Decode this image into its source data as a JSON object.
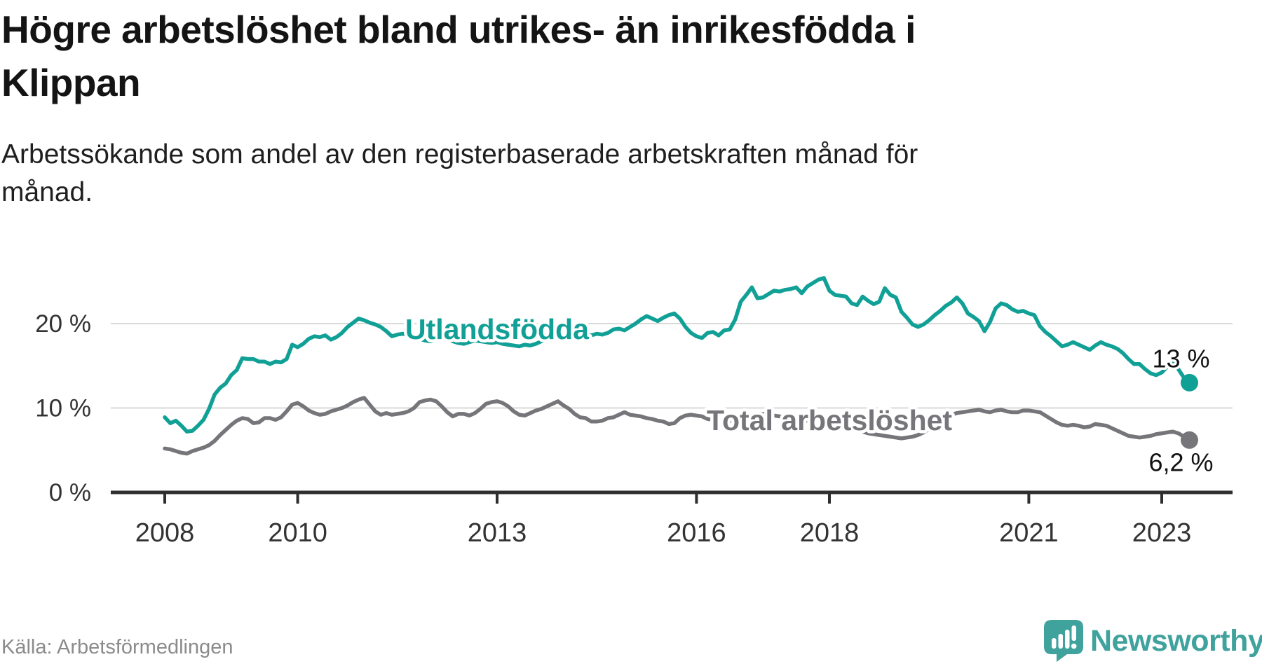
{
  "header": {
    "title_lines": [
      "Högre arbetslöshet bland utrikes- än inrikesfödda i",
      "Klippan"
    ],
    "subtitle_lines": [
      "Arbetssökande som andel av den registerbaserade arbetskraften månad för",
      "månad."
    ]
  },
  "footer": {
    "source": "Källa: Arbetsförmedlingen",
    "brand": "Newsworthy"
  },
  "chart_data": {
    "type": "line",
    "title": "Högre arbetslöshet bland utrikes- än inrikesfödda i Klippan",
    "subtitle": "Arbetssökande som andel av den registerbaserade arbetskraften månad för månad.",
    "source": "Källa: Arbetsförmedlingen",
    "unit": "%",
    "grid": true,
    "legend": "inline-labels",
    "x_axis": {
      "start_year": 2008,
      "start_month": 1,
      "end_year": 2023,
      "end_month": 6,
      "tick_years": [
        2008,
        2010,
        2013,
        2016,
        2018,
        2021,
        2023
      ]
    },
    "y_axis": {
      "range": [
        0,
        27
      ],
      "ticks": [
        {
          "value": 0,
          "label": "0 %"
        },
        {
          "value": 10,
          "label": "10 %"
        },
        {
          "value": 20,
          "label": "20 %"
        }
      ]
    },
    "series": [
      {
        "name": "Utlandsfödda",
        "color": "#11a096",
        "end_label": "13 %",
        "end_value": 13.0,
        "values": [
          8.9,
          8.2,
          8.5,
          7.9,
          7.2,
          7.3,
          7.9,
          8.6,
          9.9,
          11.6,
          12.4,
          12.9,
          13.9,
          14.5,
          15.9,
          15.8,
          15.8,
          15.5,
          15.5,
          15.2,
          15.5,
          15.4,
          15.8,
          17.5,
          17.2,
          17.6,
          18.2,
          18.5,
          18.4,
          18.6,
          18.1,
          18.4,
          18.9,
          19.6,
          20.1,
          20.6,
          20.4,
          20.1,
          19.9,
          19.6,
          19.1,
          18.5,
          18.7,
          18.8,
          18.6,
          18.4,
          18.2,
          18.0,
          17.9,
          18.1,
          18.3,
          18.1,
          17.9,
          17.7,
          17.6,
          17.8,
          18.0,
          17.9,
          17.8,
          17.7,
          17.8,
          17.6,
          17.5,
          17.4,
          17.3,
          17.5,
          17.4,
          17.6,
          17.9,
          18.1,
          18.3,
          18.5,
          18.6,
          18.8,
          19.0,
          18.7,
          18.9,
          18.6,
          18.8,
          18.7,
          18.9,
          19.3,
          19.4,
          19.2,
          19.6,
          20.0,
          20.5,
          20.9,
          20.6,
          20.3,
          20.7,
          21.0,
          21.2,
          20.6,
          19.6,
          18.9,
          18.5,
          18.3,
          18.9,
          19.0,
          18.6,
          19.2,
          19.3,
          20.5,
          22.6,
          23.4,
          24.3,
          23.0,
          23.1,
          23.5,
          23.9,
          23.8,
          24.0,
          24.1,
          24.3,
          23.6,
          24.4,
          24.8,
          25.2,
          25.4,
          23.9,
          23.4,
          23.3,
          23.2,
          22.4,
          22.2,
          23.2,
          22.7,
          22.3,
          22.6,
          24.2,
          23.4,
          23.1,
          21.4,
          20.7,
          19.9,
          19.6,
          19.9,
          20.4,
          21.0,
          21.5,
          22.1,
          22.5,
          23.1,
          22.4,
          21.2,
          20.8,
          20.3,
          19.1,
          20.2,
          21.8,
          22.4,
          22.2,
          21.7,
          21.4,
          21.5,
          21.2,
          21.0,
          19.7,
          19.0,
          18.5,
          17.9,
          17.3,
          17.5,
          17.8,
          17.5,
          17.2,
          16.9,
          17.4,
          17.8,
          17.5,
          17.3,
          17.0,
          16.5,
          15.8,
          15.2,
          15.2,
          14.6,
          14.1,
          13.9,
          14.2,
          14.9,
          15.4,
          14.6,
          13.6,
          13.0
        ]
      },
      {
        "name": "Total arbetslöshet",
        "color": "#76767a",
        "end_label": "6,2 %",
        "end_value": 6.2,
        "values": [
          5.2,
          5.1,
          4.9,
          4.7,
          4.6,
          4.9,
          5.1,
          5.3,
          5.6,
          6.1,
          6.8,
          7.4,
          8.0,
          8.5,
          8.8,
          8.7,
          8.2,
          8.3,
          8.8,
          8.8,
          8.6,
          8.9,
          9.6,
          10.4,
          10.6,
          10.2,
          9.7,
          9.4,
          9.2,
          9.3,
          9.6,
          9.8,
          10.0,
          10.3,
          10.7,
          11.0,
          11.2,
          10.4,
          9.6,
          9.2,
          9.4,
          9.2,
          9.3,
          9.4,
          9.6,
          10.0,
          10.7,
          10.9,
          11.0,
          10.8,
          10.2,
          9.5,
          9.0,
          9.3,
          9.3,
          9.1,
          9.4,
          9.9,
          10.5,
          10.7,
          10.8,
          10.6,
          10.2,
          9.6,
          9.2,
          9.1,
          9.4,
          9.7,
          9.9,
          10.2,
          10.5,
          10.8,
          10.3,
          9.9,
          9.3,
          8.9,
          8.8,
          8.4,
          8.4,
          8.5,
          8.8,
          8.9,
          9.2,
          9.5,
          9.2,
          9.1,
          9.0,
          8.8,
          8.7,
          8.5,
          8.4,
          8.1,
          8.2,
          8.8,
          9.1,
          9.2,
          9.1,
          9.0,
          8.7,
          8.6,
          8.5,
          8.4,
          8.4,
          8.6,
          8.8,
          9.0,
          9.1,
          9.2,
          9.3,
          9.2,
          9.1,
          9.0,
          8.9,
          8.8,
          8.7,
          8.6,
          8.5,
          8.4,
          8.3,
          8.2,
          8.1,
          8.0,
          7.9,
          7.8,
          7.6,
          7.4,
          7.2,
          7.0,
          6.9,
          6.8,
          6.7,
          6.6,
          6.5,
          6.4,
          6.5,
          6.6,
          6.8,
          7.1,
          7.5,
          8.0,
          8.5,
          8.9,
          9.2,
          9.4,
          9.5,
          9.6,
          9.7,
          9.8,
          9.6,
          9.5,
          9.7,
          9.8,
          9.6,
          9.5,
          9.5,
          9.7,
          9.7,
          9.6,
          9.5,
          9.1,
          8.7,
          8.3,
          8.0,
          7.9,
          8.0,
          7.9,
          7.7,
          7.8,
          8.1,
          8.0,
          7.9,
          7.6,
          7.3,
          7.0,
          6.7,
          6.6,
          6.5,
          6.6,
          6.7,
          6.9,
          7.0,
          7.1,
          7.2,
          7.0,
          6.6,
          6.2
        ]
      }
    ]
  }
}
